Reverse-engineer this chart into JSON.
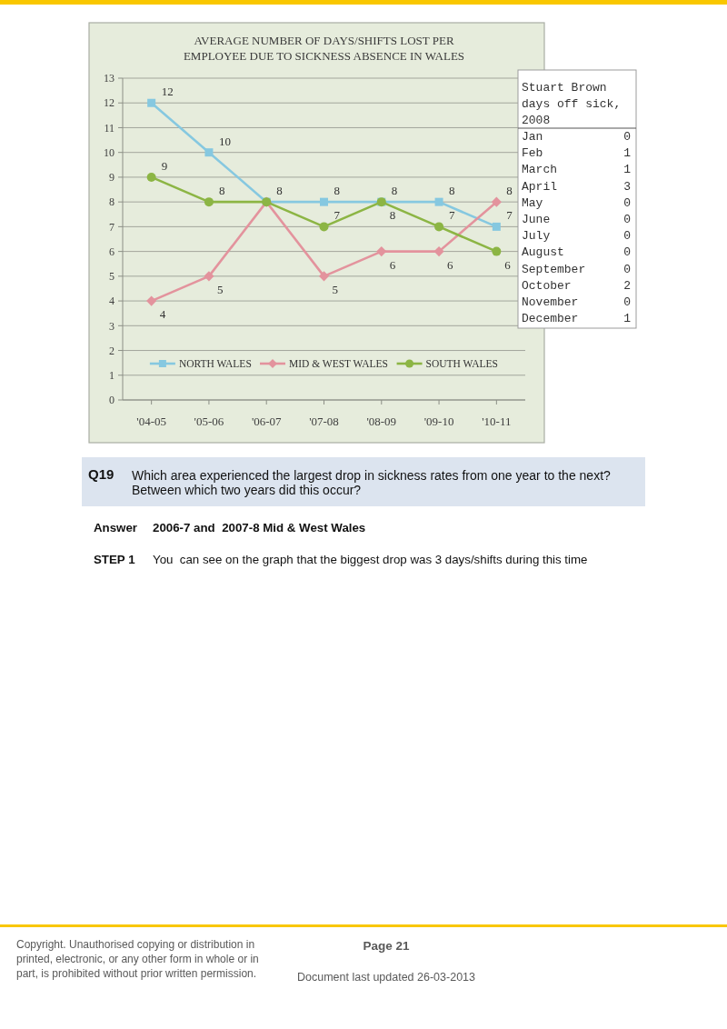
{
  "chart_data": [
    {
      "type": "line",
      "title": "AVERAGE NUMBER OF DAYS/SHIFTS LOST PER EMPLOYEE DUE TO SICKNESS ABSENCE IN WALES",
      "categories": [
        "'04-05",
        "'05-06",
        "'06-07",
        "'07-08",
        "'08-09",
        "'09-10",
        "'10-11"
      ],
      "ylim": [
        0,
        13
      ],
      "yticks": [
        0,
        1,
        2,
        3,
        4,
        5,
        6,
        7,
        8,
        9,
        10,
        11,
        12,
        13
      ],
      "grid": "y",
      "legend": "bottom",
      "series": [
        {
          "name": "NORTH WALES",
          "color": "#86c8e0",
          "marker": "square",
          "values": [
            12,
            10,
            8,
            8,
            8,
            8,
            7
          ],
          "value_labels": [
            "12",
            "10",
            "8",
            "8",
            "8",
            "8",
            "7"
          ]
        },
        {
          "name": "MID & WEST WALES",
          "color": "#e3939d",
          "marker": "diamond",
          "values": [
            4,
            5,
            8,
            5,
            6,
            6,
            8
          ],
          "value_labels": [
            "4",
            "5",
            null,
            "5",
            "6",
            "6",
            "8"
          ]
        },
        {
          "name": "SOUTH WALES",
          "color": "#8cb544",
          "marker": "circle",
          "values": [
            9,
            8,
            8,
            7,
            8,
            7,
            6
          ],
          "value_labels": [
            "9",
            "8",
            null,
            "7",
            "8",
            "7",
            "6"
          ]
        }
      ],
      "annotations": [
        "Q19",
        "Which area experienced the largest drop in sickness rates from one year to the next? Between which two years did this occur?",
        "Answer",
        "2006-7 and  2007-8 Mid & West Wales",
        "STEP 1",
        "You  can see on the graph that the biggest drop was 3 days/shifts during this time",
        "Copyright. Unauthorised copying or distribution in printed, electronic, or any other form in whole or in part, is prohibited without prior written permission.",
        "Page 21",
        "Document last updated 26-03-2013"
      ]
    },
    {
      "type": "other",
      "title": "Stuart Brown days off sick, 2008",
      "categories": [
        "Jan",
        "Feb",
        "March",
        "April",
        "May",
        "June",
        "July",
        "August",
        "September",
        "October",
        "November",
        "December"
      ],
      "values": [
        0,
        1,
        1,
        3,
        0,
        0,
        0,
        0,
        0,
        2,
        0,
        1
      ],
      "data_labels": true
    }
  ]
}
